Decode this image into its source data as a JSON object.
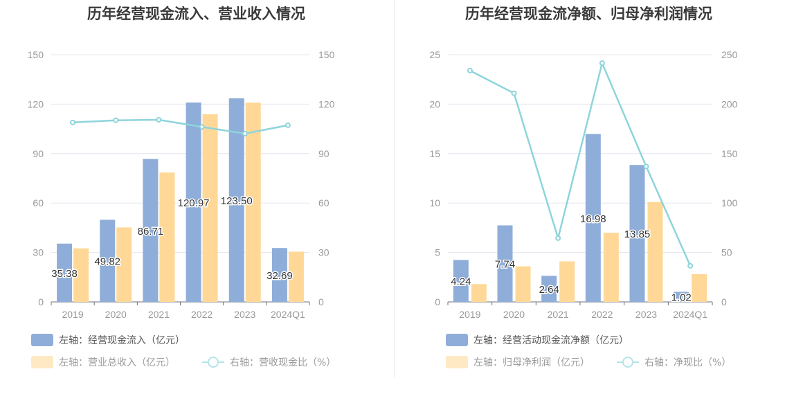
{
  "colors": {
    "bar1": "#8eadd9",
    "bar2": "#ffd898",
    "line": "#8ed4db",
    "grid": "#e3e6ef",
    "axis": "#999999"
  },
  "chart_data": [
    {
      "type": "bar",
      "title": "历年经营现金流入、营业收入情况",
      "categories": [
        "2019",
        "2020",
        "2021",
        "2022",
        "2023",
        "2024Q1"
      ],
      "ylim": [
        0,
        150
      ],
      "yticks": [
        "0",
        "30",
        "60",
        "90",
        "120",
        "150"
      ],
      "y2lim": [
        0,
        150
      ],
      "y2ticks": [
        "0",
        "30",
        "60",
        "90",
        "120",
        "150"
      ],
      "series": [
        {
          "name": "左轴：经营现金流入（亿元）",
          "kind": "bar",
          "axis": "left",
          "values": [
            35.38,
            49.82,
            86.71,
            120.97,
            123.5,
            32.69
          ],
          "labels": [
            "35.38",
            "49.82",
            "86.71",
            "120.97",
            "123.50",
            "32.69"
          ]
        },
        {
          "name": "左轴：营业总收入（亿元）",
          "kind": "bar",
          "axis": "left",
          "values": [
            32.5,
            45.2,
            78.5,
            113.9,
            120.9,
            30.5
          ]
        },
        {
          "name": "右轴：营收现金比（%）",
          "kind": "line",
          "axis": "right",
          "values": [
            108.9,
            110.2,
            110.5,
            106.2,
            102.1,
            107.2
          ]
        }
      ],
      "legend": [
        "左轴：经营现金流入（亿元）",
        "左轴：营业总收入（亿元）",
        "右轴：营收现金比（%）"
      ]
    },
    {
      "type": "bar",
      "title": "历年经营现金流净额、归母净利润情况",
      "categories": [
        "2019",
        "2020",
        "2021",
        "2022",
        "2023",
        "2024Q1"
      ],
      "ylim": [
        0,
        25
      ],
      "yticks": [
        "0",
        "5",
        "10",
        "15",
        "20",
        "25"
      ],
      "y2lim": [
        0,
        250
      ],
      "y2ticks": [
        "0",
        "50",
        "100",
        "150",
        "200",
        "250"
      ],
      "series": [
        {
          "name": "左轴：经营活动现金流净额（亿元）",
          "kind": "bar",
          "axis": "left",
          "values": [
            4.24,
            7.74,
            2.64,
            16.98,
            13.85,
            1.02
          ],
          "labels": [
            "4.24",
            "7.74",
            "2.64",
            "16.98",
            "13.85",
            "1.02"
          ]
        },
        {
          "name": "左轴：归母净利润（亿元）",
          "kind": "bar",
          "axis": "left",
          "values": [
            1.8,
            3.6,
            4.1,
            7.0,
            10.1,
            2.8
          ]
        },
        {
          "name": "右轴：净现比（%）",
          "kind": "line",
          "axis": "right",
          "values": [
            234,
            211,
            64.5,
            241.5,
            137,
            36.5
          ]
        }
      ],
      "legend": [
        "左轴：经营活动现金流净额（亿元）",
        "左轴：归母净利润（亿元）",
        "右轴：净现比（%）"
      ]
    }
  ]
}
